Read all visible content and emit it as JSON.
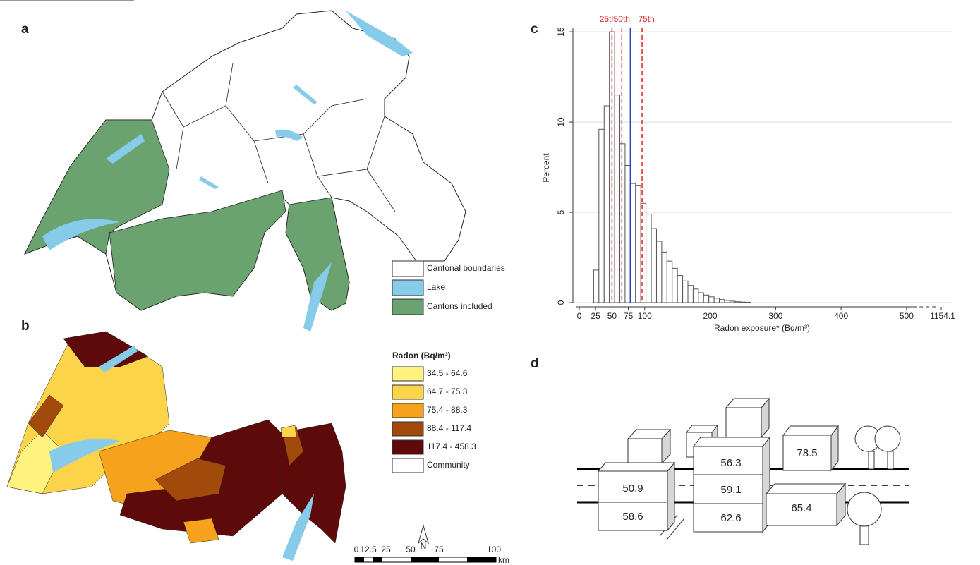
{
  "panel_labels": [
    "a",
    "b",
    "c",
    "d"
  ],
  "map_a": {
    "legend": [
      "Cantonal boundaries",
      "Lake",
      "Cantons included"
    ]
  },
  "map_b": {
    "legend_title": "Radon (Bq/m³)",
    "legend": [
      "34.5 - 64.6",
      "64.7 - 75.3",
      "75.4 - 88.3",
      "88.4 - 117.4",
      "117.4 - 458.3",
      "Community"
    ],
    "scale_ticks": [
      "0",
      "12.5",
      "25",
      "50",
      "75",
      "100"
    ],
    "scale_unit": "km",
    "north": "N"
  },
  "chart_data": {
    "type": "histogram",
    "y_label": "Percent",
    "x_label": "Radon exposure* (Bq/m³)",
    "bins": [
      22,
      30,
      38,
      46,
      54,
      62,
      70,
      78,
      86,
      94,
      102,
      110,
      118,
      126,
      134,
      142,
      150,
      158,
      166,
      174,
      182,
      190,
      198,
      206,
      214,
      222,
      230,
      238,
      246,
      254,
      262
    ],
    "values": [
      1.8,
      9.6,
      10.9,
      15.0,
      11.5,
      8.8,
      7.6,
      6.6,
      6.5,
      5.5,
      4.9,
      4.1,
      3.4,
      2.8,
      2.3,
      1.9,
      1.5,
      1.2,
      0.95,
      0.75,
      0.55,
      0.42,
      0.32,
      0.24,
      0.17,
      0.12,
      0.08,
      0.05,
      0.03,
      0.02
    ],
    "color": "#ffffff",
    "xlim": [
      0,
      540
    ],
    "xticks": [
      0,
      25,
      50,
      75,
      100,
      200,
      300,
      400,
      500
    ],
    "axis_end_value": 1154.1,
    "ylim": [
      0,
      15.2
    ],
    "yticks": [
      0,
      5,
      10,
      15
    ],
    "grid": true,
    "reference_lines": [
      {
        "value": 50,
        "label": "25th",
        "color": "#e8231f"
      },
      {
        "value": 65,
        "label": "50th",
        "color": "#e8231f"
      },
      {
        "value": 96,
        "label": "75th",
        "color": "#e8231f"
      },
      {
        "value": 78,
        "color": "#2a3fc4"
      }
    ]
  },
  "diagram_d": {
    "values": [
      50.9,
      58.6,
      56.3,
      59.1,
      62.6,
      78.5,
      65.4
    ]
  }
}
